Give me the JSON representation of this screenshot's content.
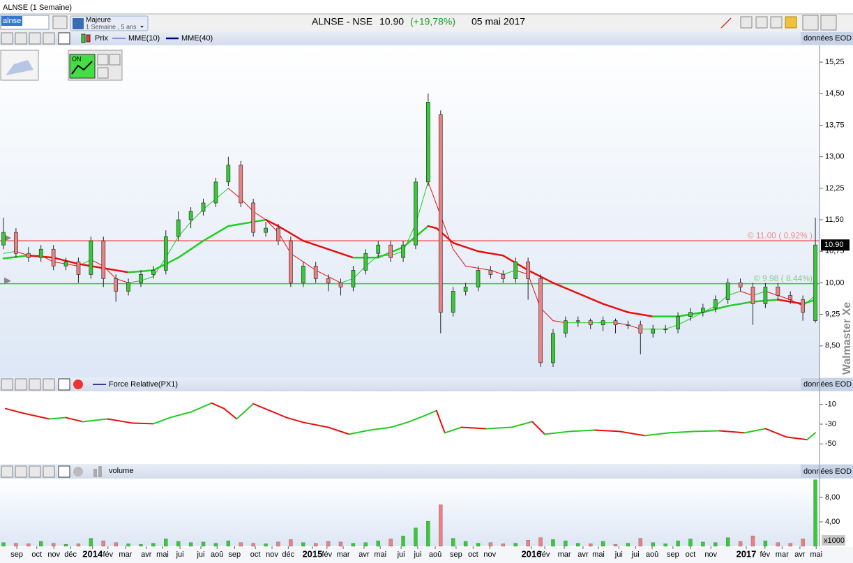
{
  "header": {
    "window_title": "ALNSE (1 Semaine)",
    "symbol_input": "alnse",
    "period_group": "Majeure",
    "period": "1 Semaine , 5 ans",
    "instrument": "ALNSE - NSE",
    "last": "10.90",
    "change": "(+19,78%)",
    "date": "05 mai 2017",
    "watermark": "Walmaster Xe"
  },
  "chart_data": [
    {
      "type": "candlestick",
      "name": "Prix",
      "source": "données EOD",
      "up_color": "#33cc33",
      "down_color": "#f08080",
      "rise_color": "#22cc22",
      "fall_color": "#e81010",
      "xlim": [
        0,
        196
      ],
      "ylim": [
        7.75,
        15.65
      ],
      "yticks": [
        {
          "value": 15.25,
          "label": "15,25"
        },
        {
          "value": 14.5,
          "label": "14,50"
        },
        {
          "value": 13.75,
          "label": "13,75"
        },
        {
          "value": 13,
          "label": "13,00"
        },
        {
          "value": 12.25,
          "label": "12,25"
        },
        {
          "value": 11.5,
          "label": "11,50"
        },
        {
          "value": 10.75,
          "label": "10,75"
        },
        {
          "value": 10,
          "label": "10,00"
        },
        {
          "value": 9.25,
          "label": "9,25"
        },
        {
          "value": 8.5,
          "label": "8,50"
        }
      ],
      "last_price": {
        "value": 10.9,
        "label": "10.90"
      },
      "hlines": [
        {
          "value": 11.0,
          "label": "© 11.00 ( 0.92% )",
          "color": "#f06060",
          "label_color": "#f09090"
        },
        {
          "value": 9.98,
          "label": "© 9.98 ( 8.44%)",
          "color": "#33cc33",
          "label_color": "#88cc88"
        }
      ],
      "x": [
        0,
        3,
        6,
        9,
        12,
        15,
        18,
        21,
        24,
        27,
        30,
        33,
        36,
        39,
        42,
        45,
        48,
        51,
        54,
        57,
        60,
        63,
        66,
        69,
        72,
        75,
        78,
        81,
        84,
        87,
        90,
        93,
        96,
        99,
        102,
        105,
        108,
        111,
        114,
        117,
        120,
        123,
        126,
        129,
        132,
        135,
        138,
        141,
        144,
        147,
        150,
        153,
        156,
        159,
        162,
        165,
        168,
        171,
        174,
        177,
        180,
        183,
        186,
        189,
        192,
        195
      ],
      "open": [
        10.9,
        11.2,
        10.7,
        10.6,
        10.8,
        10.4,
        10.5,
        10.2,
        11.0,
        10.1,
        9.8,
        10.0,
        10.2,
        10.3,
        11.1,
        11.5,
        11.7,
        11.9,
        12.4,
        12.8,
        11.9,
        11.2,
        11.3,
        11.0,
        10.0,
        10.4,
        10.1,
        10.0,
        9.9,
        10.3,
        10.7,
        10.9,
        10.6,
        10.9,
        12.4,
        14.0,
        9.3,
        9.8,
        9.9,
        10.3,
        10.2,
        10.1,
        10.5,
        10.1,
        8.1,
        8.8,
        9.1,
        9.1,
        9.0,
        9.1,
        9.0,
        9.0,
        8.8,
        8.9,
        8.9,
        9.2,
        9.3,
        9.4,
        9.6,
        10.0,
        9.9,
        9.5,
        9.9,
        9.7,
        9.6,
        9.1
      ],
      "high": [
        11.55,
        11.3,
        10.85,
        10.9,
        10.9,
        10.6,
        10.6,
        11.1,
        11.1,
        10.2,
        10.1,
        10.3,
        10.4,
        11.25,
        11.7,
        11.8,
        12.0,
        12.5,
        13.0,
        12.9,
        12.0,
        11.45,
        11.4,
        11.1,
        10.5,
        10.5,
        10.2,
        10.1,
        10.4,
        10.8,
        11.0,
        11.0,
        11.0,
        12.5,
        14.5,
        14.1,
        9.9,
        10.0,
        10.4,
        10.4,
        10.3,
        10.6,
        10.6,
        10.2,
        8.9,
        9.2,
        9.2,
        9.15,
        9.2,
        9.15,
        9.1,
        9.1,
        9.0,
        9.0,
        9.3,
        9.4,
        9.5,
        9.7,
        10.1,
        10.1,
        10.0,
        10.0,
        10.0,
        9.8,
        9.7,
        11.55
      ],
      "low": [
        10.8,
        10.6,
        10.5,
        10.5,
        10.3,
        10.3,
        10.0,
        10.1,
        9.9,
        9.55,
        9.7,
        9.9,
        10.1,
        10.2,
        11.0,
        11.3,
        11.6,
        11.8,
        12.3,
        11.8,
        11.1,
        11.1,
        10.9,
        9.9,
        9.9,
        10.0,
        9.8,
        9.7,
        9.8,
        10.2,
        10.6,
        10.5,
        10.5,
        10.8,
        12.3,
        8.8,
        9.2,
        9.7,
        9.8,
        10.1,
        10.0,
        10.0,
        9.6,
        8.0,
        8.0,
        8.7,
        8.95,
        8.9,
        8.85,
        8.8,
        8.9,
        8.3,
        8.7,
        8.8,
        8.8,
        9.1,
        9.2,
        9.3,
        9.5,
        9.8,
        9.0,
        9.4,
        9.6,
        9.5,
        9.1,
        9.05
      ],
      "close": [
        11.2,
        10.7,
        10.6,
        10.8,
        10.4,
        10.5,
        10.2,
        11.0,
        10.1,
        9.8,
        10.0,
        10.2,
        10.3,
        11.1,
        11.5,
        11.7,
        11.9,
        12.4,
        12.8,
        11.9,
        11.2,
        11.3,
        11.0,
        10.0,
        10.4,
        10.1,
        10.0,
        9.9,
        10.3,
        10.7,
        10.9,
        10.6,
        10.9,
        12.4,
        14.3,
        9.3,
        9.8,
        9.9,
        10.3,
        10.2,
        10.1,
        10.5,
        10.1,
        8.1,
        8.8,
        9.1,
        9.1,
        9.0,
        9.1,
        9.0,
        9.0,
        8.8,
        8.9,
        8.9,
        9.2,
        9.3,
        9.4,
        9.6,
        10.0,
        9.9,
        9.5,
        9.9,
        9.7,
        9.6,
        9.3,
        10.9
      ],
      "series": [
        {
          "name": "MME(10)",
          "color": "#3333aa",
          "line_width": 1,
          "values": [
            10.7,
            10.75,
            10.65,
            10.65,
            10.5,
            10.45,
            10.4,
            10.55,
            10.4,
            10.1,
            10.0,
            10.05,
            10.15,
            10.6,
            11.1,
            11.45,
            11.75,
            12.0,
            12.25,
            12.0,
            11.7,
            11.5,
            11.2,
            10.7,
            10.5,
            10.3,
            10.15,
            10.0,
            10.1,
            10.4,
            10.65,
            10.65,
            10.75,
            11.4,
            12.4,
            11.6,
            10.8,
            10.4,
            10.35,
            10.3,
            10.2,
            10.3,
            10.2,
            9.4,
            9.1,
            9.05,
            9.05,
            9.05,
            9.05,
            9.05,
            9.0,
            8.9,
            8.9,
            8.9,
            9.0,
            9.15,
            9.3,
            9.45,
            9.7,
            9.8,
            9.7,
            9.8,
            9.7,
            9.6,
            9.45,
            9.7
          ]
        },
        {
          "name": "MME(40)",
          "color": "#000080",
          "line_width": 2.5,
          "x": [
            0,
            6,
            12,
            18,
            24,
            30,
            36,
            42,
            48,
            54,
            60,
            63,
            66,
            72,
            78,
            84,
            90,
            96,
            102,
            104,
            108,
            114,
            120,
            126,
            132,
            138,
            144,
            150,
            156,
            162,
            168,
            174,
            180,
            186,
            192,
            195
          ],
          "values": [
            10.58,
            10.65,
            10.6,
            10.45,
            10.35,
            10.25,
            10.3,
            10.6,
            11.0,
            11.35,
            11.45,
            11.5,
            11.35,
            11.0,
            10.8,
            10.6,
            10.6,
            10.85,
            11.35,
            11.3,
            10.95,
            10.75,
            10.65,
            10.3,
            10.0,
            9.75,
            9.5,
            9.3,
            9.2,
            9.2,
            9.3,
            9.45,
            9.55,
            9.6,
            9.5,
            9.6
          ]
        }
      ]
    },
    {
      "type": "line",
      "source": "données EOD",
      "rise_color": "#22cc22",
      "fall_color": "#e81010",
      "xlim": [
        0,
        196
      ],
      "ylim": [
        -70.4,
        3.3
      ],
      "yticks": [
        -10,
        -30,
        -50
      ],
      "series": [
        {
          "name": "Force Relative(PX1)",
          "color": "#000080",
          "x": [
            0.5,
            5,
            11,
            15,
            19,
            25,
            31,
            36,
            40,
            45,
            50,
            53,
            56,
            60,
            64,
            68,
            72,
            78,
            83,
            88,
            93,
            97,
            100,
            104,
            106,
            110,
            116,
            122,
            127,
            130,
            136,
            142,
            148,
            154,
            160,
            166,
            172,
            178,
            183,
            188,
            193,
            195
          ],
          "values": [
            -14.2,
            -19.1,
            -24.7,
            -23.3,
            -27.5,
            -24.7,
            -28.9,
            -29.6,
            -23.3,
            -17.7,
            -8.6,
            -14.2,
            -24.7,
            -9.3,
            -16.3,
            -23.3,
            -28.2,
            -33.2,
            -40.2,
            -36.0,
            -33.2,
            -28.2,
            -23.3,
            -16.3,
            -38.8,
            -33.2,
            -34.6,
            -33.2,
            -27.5,
            -40.2,
            -37.4,
            -36.0,
            -37.4,
            -41.6,
            -38.8,
            -37.4,
            -36.7,
            -38.8,
            -34.6,
            -43.0,
            -45.8,
            -38.8
          ]
        }
      ]
    },
    {
      "type": "bar",
      "name": "volume",
      "source": "données EOD",
      "unit_label": "x1000",
      "color": "#999999",
      "xlim": [
        0,
        196
      ],
      "ylim": [
        0,
        11.09
      ],
      "yticks": [
        {
          "value": 8,
          "label": "8,00"
        },
        {
          "value": 4,
          "label": "4,00"
        }
      ],
      "xticks": [
        {
          "value": 3.2,
          "label": "sep"
        },
        {
          "value": 8.0,
          "label": "oct"
        },
        {
          "value": 12.1,
          "label": "nov"
        },
        {
          "value": 16.1,
          "label": "déc"
        },
        {
          "value": 21.4,
          "label": "2014"
        },
        {
          "value": 25.1,
          "label": "fév"
        },
        {
          "value": 29.3,
          "label": "mar"
        },
        {
          "value": 34.3,
          "label": "avr"
        },
        {
          "value": 38.2,
          "label": "mai"
        },
        {
          "value": 42.4,
          "label": "jui"
        },
        {
          "value": 47.4,
          "label": "jui"
        },
        {
          "value": 51.3,
          "label": "aoû"
        },
        {
          "value": 55.5,
          "label": "sep"
        },
        {
          "value": 60.5,
          "label": "oct"
        },
        {
          "value": 64.5,
          "label": "nov"
        },
        {
          "value": 68.4,
          "label": "déc"
        },
        {
          "value": 74.2,
          "label": "2015"
        },
        {
          "value": 77.7,
          "label": "fév"
        },
        {
          "value": 81.6,
          "label": "mar"
        },
        {
          "value": 86.6,
          "label": "avr"
        },
        {
          "value": 90.5,
          "label": "mai"
        },
        {
          "value": 95.5,
          "label": "jui"
        },
        {
          "value": 99.5,
          "label": "jui"
        },
        {
          "value": 103.7,
          "label": "aoû"
        },
        {
          "value": 108.7,
          "label": "sep"
        },
        {
          "value": 112.8,
          "label": "oct"
        },
        {
          "value": 116.8,
          "label": "nov"
        },
        {
          "value": 126.8,
          "label": "2016"
        },
        {
          "value": 130.0,
          "label": "fév"
        },
        {
          "value": 134.7,
          "label": "mar"
        },
        {
          "value": 139.2,
          "label": "avr"
        },
        {
          "value": 142.9,
          "label": "mai"
        },
        {
          "value": 147.8,
          "label": "jui"
        },
        {
          "value": 151.8,
          "label": "jui"
        },
        {
          "value": 155.8,
          "label": "aoû"
        },
        {
          "value": 160.8,
          "label": "sep"
        },
        {
          "value": 165.0,
          "label": "oct"
        },
        {
          "value": 169.9,
          "label": "nov"
        },
        {
          "value": 178.4,
          "label": "2017"
        },
        {
          "value": 182.9,
          "label": "fév"
        },
        {
          "value": 187.0,
          "label": "mar"
        },
        {
          "value": 191.3,
          "label": "avr"
        },
        {
          "value": 195.2,
          "label": "mai"
        }
      ],
      "x": [
        0,
        3,
        6,
        9,
        12,
        15,
        18,
        21,
        24,
        27,
        30,
        33,
        36,
        39,
        42,
        45,
        48,
        51,
        54,
        57,
        60,
        63,
        66,
        69,
        72,
        75,
        78,
        81,
        84,
        87,
        90,
        93,
        96,
        99,
        102,
        105,
        108,
        111,
        114,
        117,
        120,
        123,
        126,
        129,
        132,
        135,
        138,
        141,
        144,
        147,
        150,
        153,
        156,
        159,
        162,
        165,
        168,
        171,
        174,
        177,
        180,
        183,
        186,
        189,
        192,
        195
      ],
      "values": [
        0.6,
        0.5,
        0.4,
        0.8,
        0.5,
        0.3,
        0.4,
        1.3,
        0.9,
        0.6,
        0.4,
        0.3,
        0.5,
        1.2,
        0.8,
        0.6,
        0.7,
        0.5,
        0.9,
        0.6,
        0.5,
        0.4,
        0.7,
        1.1,
        0.6,
        0.5,
        0.8,
        0.7,
        0.5,
        0.6,
        0.9,
        1.2,
        1.7,
        3.0,
        4.1,
        6.8,
        1.3,
        0.8,
        0.5,
        0.6,
        0.4,
        0.5,
        1.0,
        1.4,
        1.1,
        0.9,
        0.5,
        0.4,
        0.8,
        0.3,
        0.5,
        1.3,
        0.6,
        0.4,
        0.9,
        1.2,
        0.7,
        0.6,
        1.4,
        0.8,
        1.7,
        0.9,
        0.6,
        0.5,
        1.2,
        10.9
      ]
    }
  ]
}
